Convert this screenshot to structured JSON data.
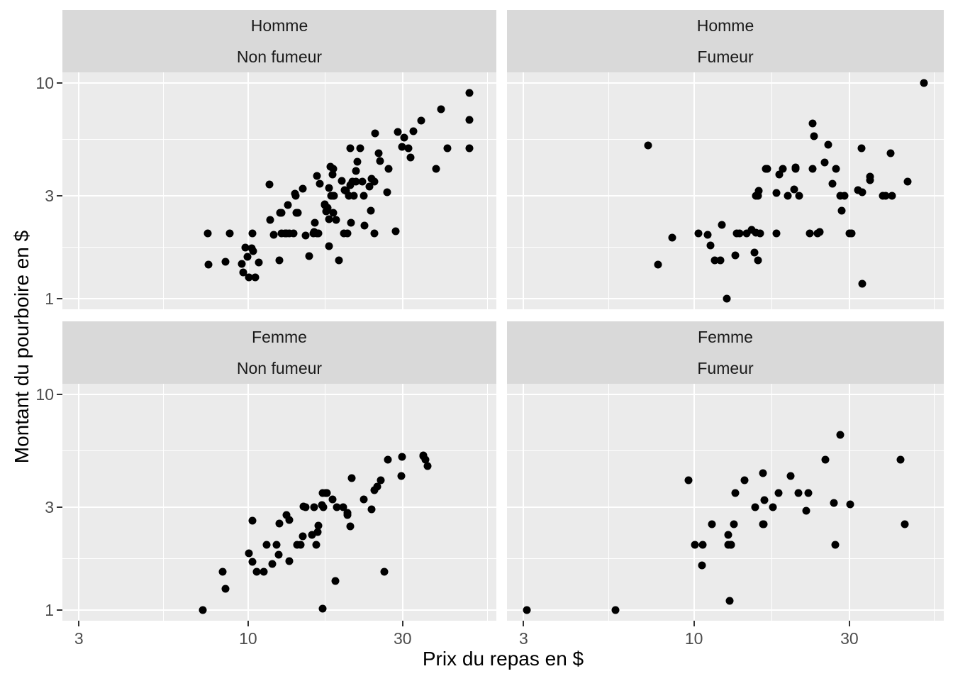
{
  "chart_data": {
    "type": "scatter",
    "title": "",
    "xlabel": "Prix du repas en $",
    "ylabel": "Montant du pourboire en $",
    "x_scale": "log10",
    "y_scale": "log10",
    "x_breaks": [
      3,
      10,
      30
    ],
    "y_breaks": [
      1,
      3,
      10
    ],
    "x_minor_breaks": [
      5.477,
      17.321,
      54.772
    ],
    "y_minor_breaks": [
      1.732,
      5.477
    ],
    "x_domain": [
      2.668,
      58.46
    ],
    "y_domain": [
      0.891,
      11.22
    ],
    "grid": true,
    "legend": "none",
    "facets": [
      {
        "strip_line1": "Homme",
        "strip_line2": "Non fumeur",
        "row": 0,
        "col": 0,
        "points": [
          [
            10.34,
            1.66
          ],
          [
            21.01,
            3.5
          ],
          [
            23.68,
            3.31
          ],
          [
            25.29,
            4.71
          ],
          [
            8.77,
            2
          ],
          [
            26.88,
            3.12
          ],
          [
            15.04,
            1.96
          ],
          [
            14.78,
            3.23
          ],
          [
            10.27,
            1.71
          ],
          [
            15.42,
            1.57
          ],
          [
            18.43,
            3
          ],
          [
            21.58,
            3.92
          ],
          [
            16.29,
            3.71
          ],
          [
            20.65,
            3.35
          ],
          [
            17.92,
            4.08
          ],
          [
            39.42,
            7.58
          ],
          [
            19.82,
            3.18
          ],
          [
            17.81,
            2.34
          ],
          [
            13.37,
            2
          ],
          [
            12.69,
            2
          ],
          [
            21.7,
            4.3
          ],
          [
            9.55,
            1.45
          ],
          [
            18.35,
            2.5
          ],
          [
            17.78,
            3.27
          ],
          [
            24.06,
            3.6
          ],
          [
            16.31,
            2
          ],
          [
            18.69,
            2.31
          ],
          [
            31.27,
            5
          ],
          [
            16.04,
            2.24
          ],
          [
            17.46,
            2.54
          ],
          [
            13.94,
            3.06
          ],
          [
            9.68,
            1.32
          ],
          [
            30.4,
            5.6
          ],
          [
            18.29,
            3
          ],
          [
            22.23,
            5
          ],
          [
            32.4,
            6
          ],
          [
            28.55,
            2.05
          ],
          [
            18.04,
            3
          ],
          [
            12.54,
            2.5
          ],
          [
            9.94,
            1.56
          ],
          [
            25.56,
            4.34
          ],
          [
            19.49,
            3.51
          ],
          [
            48.27,
            6.73
          ],
          [
            17.59,
            2.64
          ],
          [
            20.08,
            3.15
          ],
          [
            20.23,
            2.01
          ],
          [
            12.02,
            1.97
          ],
          [
            10.51,
            1.25
          ],
          [
            27.2,
            4
          ],
          [
            22.76,
            3
          ],
          [
            17.29,
            2.71
          ],
          [
            16.66,
            3.4
          ],
          [
            15.98,
            2.03
          ],
          [
            13.03,
            2
          ],
          [
            18.28,
            4
          ],
          [
            24.71,
            5.85
          ],
          [
            21.16,
            3
          ],
          [
            22.49,
            3.5
          ],
          [
            12.46,
            1.5
          ],
          [
            20.69,
            5
          ],
          [
            18.24,
            3.76
          ],
          [
            14,
            3
          ],
          [
            38.07,
            4
          ],
          [
            23.95,
            2.55
          ],
          [
            29.93,
            5.07
          ],
          [
            11.69,
            2.31
          ],
          [
            14.26,
            2.5
          ],
          [
            15.95,
            2
          ],
          [
            8.52,
            1.48
          ],
          [
            22.82,
            2.18
          ],
          [
            19.08,
            1.5
          ],
          [
            10.33,
            2
          ],
          [
            34.3,
            6.7
          ],
          [
            41.19,
            5
          ],
          [
            9.78,
            1.73
          ],
          [
            7.51,
            2
          ],
          [
            14.07,
            2.5
          ],
          [
            13.13,
            2
          ],
          [
            17.26,
            2.74
          ],
          [
            24.55,
            2
          ],
          [
            19.77,
            2
          ],
          [
            48.17,
            5
          ],
          [
            16.49,
            2
          ],
          [
            21.5,
            3.5
          ],
          [
            12.66,
            2.5
          ],
          [
            13.81,
            2
          ],
          [
            24.52,
            3.48
          ],
          [
            20.76,
            2.24
          ],
          [
            31.71,
            4.5
          ],
          [
            7.56,
            1.44
          ],
          [
            48.33,
            9
          ],
          [
            20.45,
            3
          ],
          [
            13.28,
            2.72
          ],
          [
            11.61,
            3.39
          ],
          [
            10.77,
            1.47
          ],
          [
            10.07,
            1.25
          ],
          [
            29.03,
            5.92
          ],
          [
            17.82,
            1.75
          ]
        ]
      },
      {
        "strip_line1": "Homme",
        "strip_line2": "Fumeur",
        "row": 0,
        "col": 1,
        "points": [
          [
            38.01,
            3
          ],
          [
            11.24,
            1.76
          ],
          [
            20.29,
            3.21
          ],
          [
            13.81,
            2
          ],
          [
            11.02,
            1.98
          ],
          [
            18.29,
            3.76
          ],
          [
            15.01,
            2.09
          ],
          [
            17.92,
            3.08
          ],
          [
            19.44,
            3
          ],
          [
            32.68,
            5
          ],
          [
            28.97,
            3
          ],
          [
            40.17,
            4.73
          ],
          [
            27.28,
            4
          ],
          [
            12.03,
            1.5
          ],
          [
            21.01,
            3
          ],
          [
            15.36,
            1.64
          ],
          [
            20.49,
            4.06
          ],
          [
            25.21,
            4.29
          ],
          [
            16,
            2
          ],
          [
            50.81,
            10
          ],
          [
            15.81,
            3.16
          ],
          [
            7.25,
            5.15
          ],
          [
            31.85,
            3.18
          ],
          [
            16.82,
            4
          ],
          [
            32.9,
            3.11
          ],
          [
            17.89,
            2
          ],
          [
            14.48,
            2
          ],
          [
            34.63,
            3.55
          ],
          [
            34.65,
            3.68
          ],
          [
            23.33,
            5.65
          ],
          [
            45.35,
            3.5
          ],
          [
            23.17,
            6.5
          ],
          [
            40.55,
            3
          ],
          [
            30.46,
            2
          ],
          [
            23.1,
            4
          ],
          [
            15.69,
            1.5
          ],
          [
            28.44,
            2.56
          ],
          [
            15.48,
            2.02
          ],
          [
            16.58,
            4
          ],
          [
            10.34,
            2
          ],
          [
            13.51,
            2
          ],
          [
            18.71,
            4
          ],
          [
            20.53,
            4
          ],
          [
            26.59,
            3.41
          ],
          [
            38.73,
            3
          ],
          [
            24.27,
            2.03
          ],
          [
            30.06,
            2
          ],
          [
            25.89,
            5.16
          ],
          [
            28.15,
            3
          ],
          [
            11.59,
            1.5
          ],
          [
            7.74,
            1.44
          ],
          [
            12.16,
            2.2
          ],
          [
            8.58,
            1.92
          ],
          [
            13.42,
            1.58
          ],
          [
            24.01,
            2
          ],
          [
            15.69,
            3
          ],
          [
            15.53,
            3
          ],
          [
            12.6,
            1
          ],
          [
            32.83,
            1.17
          ],
          [
            22.67,
            2
          ]
        ]
      },
      {
        "strip_line1": "Femme",
        "strip_line2": "Non fumeur",
        "row": 1,
        "col": 0,
        "points": [
          [
            16.99,
            1.01
          ],
          [
            24.59,
            3.61
          ],
          [
            35.26,
            5
          ],
          [
            14.83,
            3.02
          ],
          [
            10.33,
            1.67
          ],
          [
            16.97,
            3.5
          ],
          [
            20.29,
            2.75
          ],
          [
            15.77,
            2.23
          ],
          [
            19.65,
            3
          ],
          [
            15.06,
            3
          ],
          [
            20.69,
            2.45
          ],
          [
            16.93,
            3.07
          ],
          [
            10.29,
            2.6
          ],
          [
            34.81,
            5.2
          ],
          [
            26.41,
            1.5
          ],
          [
            16.45,
            2.47
          ],
          [
            17.07,
            3
          ],
          [
            14.73,
            2.2
          ],
          [
            10.07,
            1.83
          ],
          [
            34.83,
            5.17
          ],
          [
            22.75,
            3.25
          ],
          [
            20.92,
            4.08
          ],
          [
            7.25,
            1
          ],
          [
            25.71,
            4
          ],
          [
            17.31,
            3.5
          ],
          [
            10.65,
            1.5
          ],
          [
            12.43,
            1.8
          ],
          [
            24.08,
            2.92
          ],
          [
            13.42,
            1.68
          ],
          [
            12.48,
            2.52
          ],
          [
            29.8,
            4.2
          ],
          [
            14.52,
            2
          ],
          [
            11.38,
            2
          ],
          [
            20.27,
            2.83
          ],
          [
            11.17,
            1.5
          ],
          [
            12.26,
            2
          ],
          [
            18.26,
            3.25
          ],
          [
            8.51,
            1.25
          ],
          [
            14.15,
            2
          ],
          [
            13.16,
            2.75
          ],
          [
            17.47,
            3.5
          ],
          [
            27.05,
            5
          ],
          [
            16.43,
            2.3
          ],
          [
            8.35,
            1.5
          ],
          [
            18.64,
            1.36
          ],
          [
            11.87,
            1.63
          ],
          [
            29.85,
            5.14
          ],
          [
            25,
            3.75
          ],
          [
            13.39,
            2.61
          ],
          [
            16.21,
            2
          ],
          [
            35.83,
            4.67
          ],
          [
            15.98,
            3
          ],
          [
            18.78,
            3
          ]
        ]
      },
      {
        "strip_line1": "Femme",
        "strip_line2": "Fumeur",
        "row": 1,
        "col": 1,
        "points": [
          [
            3.07,
            1
          ],
          [
            26.86,
            3.14
          ],
          [
            25.28,
            5
          ],
          [
            5.75,
            1
          ],
          [
            16.32,
            4.3
          ],
          [
            11.35,
            2.5
          ],
          [
            15.38,
            3
          ],
          [
            44.3,
            2.5
          ],
          [
            22.42,
            3.48
          ],
          [
            14.31,
            4
          ],
          [
            17.51,
            3
          ],
          [
            10.59,
            1.61
          ],
          [
            10.63,
            2
          ],
          [
            9.6,
            4
          ],
          [
            20.9,
            3.5
          ],
          [
            18.15,
            3.5
          ],
          [
            19.81,
            4.19
          ],
          [
            43.11,
            5
          ],
          [
            13,
            2
          ],
          [
            12.74,
            2.01
          ],
          [
            13,
            2
          ],
          [
            16.4,
            2.5
          ],
          [
            16.47,
            3.23
          ],
          [
            12.76,
            2.23
          ],
          [
            13.27,
            2.5
          ],
          [
            28.17,
            6.5
          ],
          [
            12.9,
            1.1
          ],
          [
            30.14,
            3.09
          ],
          [
            13.42,
            3.48
          ],
          [
            16.27,
            2.5
          ],
          [
            10.09,
            2
          ],
          [
            22.12,
            2.88
          ],
          [
            27.18,
            2
          ]
        ]
      }
    ]
  },
  "colors": {
    "background": "#FFFFFF",
    "panel_bg": "#EBEBEB",
    "strip_bg": "#D9D9D9",
    "gridline": "#FFFFFF",
    "point": "#000000",
    "axis_text": "#4D4D4D",
    "tick_mark": "#333333",
    "strip_text": "#1A1A1A",
    "axis_title": "#000000"
  }
}
